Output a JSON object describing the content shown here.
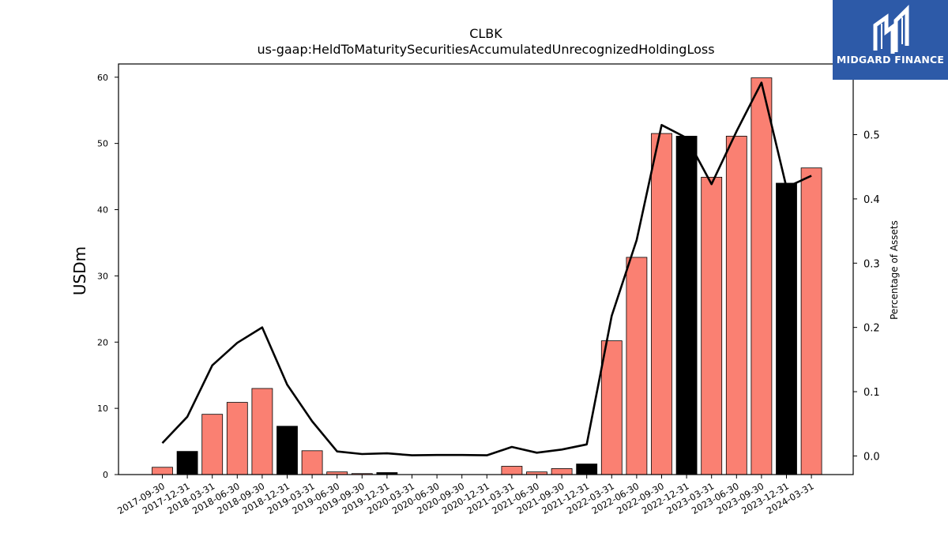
{
  "brand": {
    "name": "MIDGARD FINANCE",
    "logo_icon": "midgard-m-logo-icon",
    "background_color": "#2d5aa8"
  },
  "colors": {
    "bar_regular": "#fa8072",
    "bar_year_end": "#000000",
    "line": "#000000"
  },
  "chart_data": {
    "type": "bar",
    "title": "CLBK",
    "subtitle": "us-gaap:HeldToMaturitySecuritiesAccumulatedUnrecognizedHoldingLoss",
    "ylabel": "USDm",
    "y2label": "Percentage of Assets",
    "ylim": [
      0,
      62
    ],
    "y2lim": [
      -0.029,
      0.61
    ],
    "yticks": [
      0,
      10,
      20,
      30,
      40,
      50,
      60
    ],
    "y2ticks": [
      "0.0",
      "0.1",
      "0.2",
      "0.3",
      "0.4",
      "0.5"
    ],
    "grid": false,
    "categories": [
      "2017-09-30",
      "2017-12-31",
      "2018-03-31",
      "2018-06-30",
      "2018-09-30",
      "2018-12-31",
      "2019-03-31",
      "2019-06-30",
      "2019-09-30",
      "2019-12-31",
      "2020-03-31",
      "2020-06-30",
      "2020-09-30",
      "2020-12-31",
      "2021-03-31",
      "2021-06-30",
      "2021-09-30",
      "2021-12-31",
      "2022-03-31",
      "2022-06-30",
      "2022-09-30",
      "2022-12-31",
      "2023-03-31",
      "2023-06-30",
      "2023-09-30",
      "2023-12-31",
      "2024-03-31"
    ],
    "series": [
      {
        "kind": "bar",
        "axis": "left",
        "values": [
          1.1,
          3.5,
          9.1,
          10.9,
          13.0,
          7.3,
          3.6,
          0.4,
          0.15,
          0.3,
          0.0,
          0.0,
          0.0,
          0.0,
          1.25,
          0.4,
          0.9,
          1.6,
          20.2,
          32.8,
          51.5,
          51.1,
          44.9,
          51.1,
          59.9,
          44.0,
          46.3
        ],
        "year_end": [
          false,
          true,
          false,
          false,
          false,
          true,
          false,
          false,
          false,
          true,
          false,
          false,
          false,
          true,
          false,
          false,
          false,
          true,
          false,
          false,
          false,
          true,
          false,
          false,
          false,
          true,
          false
        ]
      },
      {
        "kind": "line",
        "axis": "right",
        "values": [
          0.02,
          0.061,
          0.141,
          0.176,
          0.2,
          0.111,
          0.054,
          0.007,
          0.003,
          0.004,
          0.001,
          0.0015,
          0.0015,
          0.001,
          0.014,
          0.005,
          0.01,
          0.018,
          0.218,
          0.336,
          0.515,
          0.495,
          0.423,
          0.505,
          0.581,
          0.418,
          0.436
        ]
      }
    ]
  }
}
